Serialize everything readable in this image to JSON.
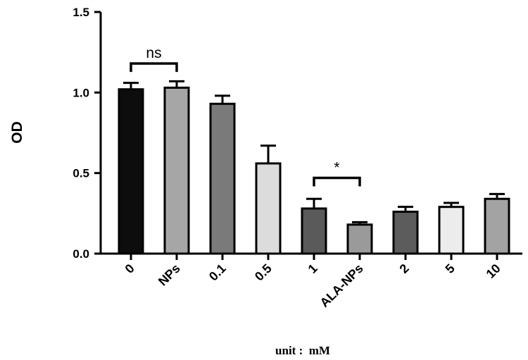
{
  "chart_data": {
    "type": "bar",
    "categories": [
      "0",
      "NPs",
      "0.1",
      "0.5",
      "1",
      "ALA-NPs",
      "2",
      "5",
      "10"
    ],
    "values": [
      1.02,
      1.03,
      0.93,
      0.56,
      0.28,
      0.18,
      0.26,
      0.29,
      0.34
    ],
    "errors": [
      0.04,
      0.04,
      0.05,
      0.11,
      0.06,
      0.015,
      0.03,
      0.025,
      0.03
    ],
    "bar_colors": [
      "#0d0d0d",
      "#a6a6a6",
      "#7a7a7a",
      "#dcdcdc",
      "#5a5a5a",
      "#9a9a9a",
      "#5c5c5c",
      "#ececec",
      "#a3a3a3"
    ],
    "ylabel": "OD",
    "xlabel": "unit :  mM",
    "ylim": [
      0,
      1.5
    ],
    "yticks": [
      0.0,
      0.5,
      1.0,
      1.5
    ],
    "ytick_labels": [
      "0.0",
      "0.5",
      "1.0",
      "1.5"
    ],
    "grid": false,
    "significance": [
      {
        "from": "0",
        "to": "NPs",
        "label": "ns",
        "y": 1.18
      },
      {
        "from": "1",
        "to": "ALA-NPs",
        "label": "*",
        "y": 0.47
      }
    ]
  }
}
